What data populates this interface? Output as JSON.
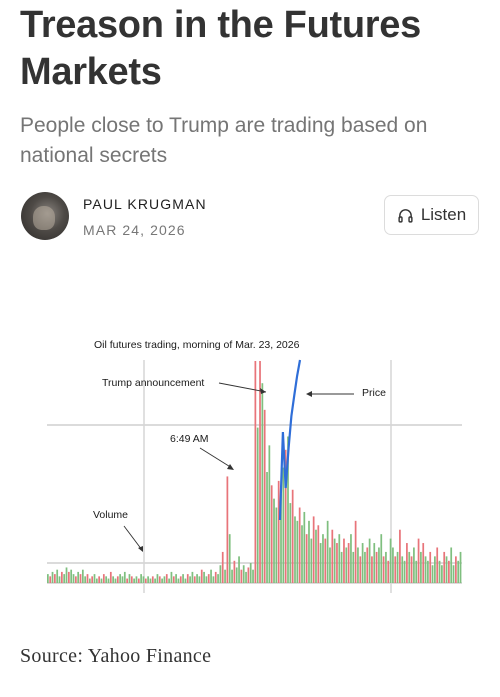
{
  "article": {
    "title": "Treason in the Futures Markets",
    "subtitle": "People close to Trump are trading based on national secrets",
    "author": "PAUL KRUGMAN",
    "date": "MAR 24, 2026",
    "listen_label": "Listen",
    "source": "Source: Yahoo Finance"
  },
  "icons": {
    "listen": "headphones-icon",
    "avatar": "author-photo"
  },
  "chart_data": {
    "type": "bar",
    "title": "Oil futures trading, morning of Mar. 23, 2026",
    "annotations": [
      "Trump announcement",
      "Price",
      "6:49 AM",
      "Volume"
    ],
    "colors": {
      "up": "#7fbf7f",
      "down": "#e8747a",
      "price": "#2f6ed8"
    },
    "volume": [
      {
        "v": 4,
        "c": "g"
      },
      {
        "v": 3,
        "c": "r"
      },
      {
        "v": 5,
        "c": "g"
      },
      {
        "v": 4,
        "c": "r"
      },
      {
        "v": 6,
        "c": "g"
      },
      {
        "v": 3,
        "c": "g"
      },
      {
        "v": 5,
        "c": "r"
      },
      {
        "v": 4,
        "c": "g"
      },
      {
        "v": 7,
        "c": "g"
      },
      {
        "v": 5,
        "c": "r"
      },
      {
        "v": 6,
        "c": "g"
      },
      {
        "v": 4,
        "c": "g"
      },
      {
        "v": 3,
        "c": "r"
      },
      {
        "v": 5,
        "c": "g"
      },
      {
        "v": 4,
        "c": "r"
      },
      {
        "v": 6,
        "c": "g"
      },
      {
        "v": 3,
        "c": "g"
      },
      {
        "v": 4,
        "c": "r"
      },
      {
        "v": 2,
        "c": "g"
      },
      {
        "v": 3,
        "c": "r"
      },
      {
        "v": 4,
        "c": "g"
      },
      {
        "v": 2,
        "c": "g"
      },
      {
        "v": 3,
        "c": "r"
      },
      {
        "v": 2,
        "c": "g"
      },
      {
        "v": 4,
        "c": "r"
      },
      {
        "v": 3,
        "c": "g"
      },
      {
        "v": 2,
        "c": "g"
      },
      {
        "v": 5,
        "c": "r"
      },
      {
        "v": 3,
        "c": "g"
      },
      {
        "v": 2,
        "c": "g"
      },
      {
        "v": 3,
        "c": "r"
      },
      {
        "v": 4,
        "c": "g"
      },
      {
        "v": 3,
        "c": "g"
      },
      {
        "v": 5,
        "c": "g"
      },
      {
        "v": 2,
        "c": "r"
      },
      {
        "v": 4,
        "c": "g"
      },
      {
        "v": 3,
        "c": "r"
      },
      {
        "v": 2,
        "c": "g"
      },
      {
        "v": 3,
        "c": "g"
      },
      {
        "v": 2,
        "c": "r"
      },
      {
        "v": 4,
        "c": "g"
      },
      {
        "v": 3,
        "c": "g"
      },
      {
        "v": 2,
        "c": "r"
      },
      {
        "v": 3,
        "c": "g"
      },
      {
        "v": 2,
        "c": "g"
      },
      {
        "v": 3,
        "c": "r"
      },
      {
        "v": 2,
        "c": "g"
      },
      {
        "v": 4,
        "c": "g"
      },
      {
        "v": 3,
        "c": "r"
      },
      {
        "v": 2,
        "c": "g"
      },
      {
        "v": 3,
        "c": "g"
      },
      {
        "v": 4,
        "c": "r"
      },
      {
        "v": 2,
        "c": "g"
      },
      {
        "v": 5,
        "c": "g"
      },
      {
        "v": 3,
        "c": "r"
      },
      {
        "v": 4,
        "c": "g"
      },
      {
        "v": 2,
        "c": "g"
      },
      {
        "v": 3,
        "c": "r"
      },
      {
        "v": 4,
        "c": "g"
      },
      {
        "v": 2,
        "c": "g"
      },
      {
        "v": 4,
        "c": "r"
      },
      {
        "v": 3,
        "c": "g"
      },
      {
        "v": 5,
        "c": "g"
      },
      {
        "v": 3,
        "c": "r"
      },
      {
        "v": 4,
        "c": "g"
      },
      {
        "v": 3,
        "c": "g"
      },
      {
        "v": 6,
        "c": "r"
      },
      {
        "v": 5,
        "c": "g"
      },
      {
        "v": 3,
        "c": "g"
      },
      {
        "v": 4,
        "c": "r"
      },
      {
        "v": 6,
        "c": "g"
      },
      {
        "v": 3,
        "c": "g"
      },
      {
        "v": 5,
        "c": "r"
      },
      {
        "v": 4,
        "c": "g"
      },
      {
        "v": 8,
        "c": "g"
      },
      {
        "v": 14,
        "c": "r"
      },
      {
        "v": 6,
        "c": "g"
      },
      {
        "v": 48,
        "c": "r"
      },
      {
        "v": 22,
        "c": "g"
      },
      {
        "v": 6,
        "c": "g"
      },
      {
        "v": 10,
        "c": "r"
      },
      {
        "v": 7,
        "c": "g"
      },
      {
        "v": 12,
        "c": "g"
      },
      {
        "v": 6,
        "c": "r"
      },
      {
        "v": 8,
        "c": "g"
      },
      {
        "v": 5,
        "c": "g"
      },
      {
        "v": 7,
        "c": "r"
      },
      {
        "v": 9,
        "c": "g"
      },
      {
        "v": 6,
        "c": "g"
      },
      {
        "v": 100,
        "c": "r"
      },
      {
        "v": 70,
        "c": "g"
      },
      {
        "v": 100,
        "c": "r"
      },
      {
        "v": 90,
        "c": "g"
      },
      {
        "v": 78,
        "c": "r"
      },
      {
        "v": 50,
        "c": "g"
      },
      {
        "v": 62,
        "c": "g"
      },
      {
        "v": 44,
        "c": "r"
      },
      {
        "v": 38,
        "c": "g"
      },
      {
        "v": 34,
        "c": "g"
      },
      {
        "v": 46,
        "c": "r"
      },
      {
        "v": 40,
        "c": "g"
      },
      {
        "v": 52,
        "c": "g"
      },
      {
        "v": 60,
        "c": "r"
      },
      {
        "v": 66,
        "c": "g"
      },
      {
        "v": 36,
        "c": "g"
      },
      {
        "v": 42,
        "c": "r"
      },
      {
        "v": 30,
        "c": "g"
      },
      {
        "v": 28,
        "c": "g"
      },
      {
        "v": 34,
        "c": "r"
      },
      {
        "v": 26,
        "c": "g"
      },
      {
        "v": 32,
        "c": "g"
      },
      {
        "v": 22,
        "c": "r"
      },
      {
        "v": 28,
        "c": "g"
      },
      {
        "v": 20,
        "c": "g"
      },
      {
        "v": 30,
        "c": "r"
      },
      {
        "v": 24,
        "c": "g"
      },
      {
        "v": 26,
        "c": "r"
      },
      {
        "v": 18,
        "c": "g"
      },
      {
        "v": 22,
        "c": "g"
      },
      {
        "v": 20,
        "c": "r"
      },
      {
        "v": 28,
        "c": "g"
      },
      {
        "v": 16,
        "c": "g"
      },
      {
        "v": 24,
        "c": "r"
      },
      {
        "v": 20,
        "c": "g"
      },
      {
        "v": 18,
        "c": "r"
      },
      {
        "v": 22,
        "c": "g"
      },
      {
        "v": 14,
        "c": "g"
      },
      {
        "v": 20,
        "c": "r"
      },
      {
        "v": 16,
        "c": "g"
      },
      {
        "v": 18,
        "c": "r"
      },
      {
        "v": 22,
        "c": "g"
      },
      {
        "v": 14,
        "c": "g"
      },
      {
        "v": 28,
        "c": "r"
      },
      {
        "v": 16,
        "c": "g"
      },
      {
        "v": 12,
        "c": "r"
      },
      {
        "v": 18,
        "c": "g"
      },
      {
        "v": 14,
        "c": "g"
      },
      {
        "v": 16,
        "c": "r"
      },
      {
        "v": 20,
        "c": "g"
      },
      {
        "v": 12,
        "c": "r"
      },
      {
        "v": 18,
        "c": "g"
      },
      {
        "v": 14,
        "c": "r"
      },
      {
        "v": 16,
        "c": "g"
      },
      {
        "v": 22,
        "c": "g"
      },
      {
        "v": 12,
        "c": "r"
      },
      {
        "v": 14,
        "c": "g"
      },
      {
        "v": 10,
        "c": "r"
      },
      {
        "v": 20,
        "c": "g"
      },
      {
        "v": 16,
        "c": "g"
      },
      {
        "v": 12,
        "c": "r"
      },
      {
        "v": 14,
        "c": "g"
      },
      {
        "v": 24,
        "c": "r"
      },
      {
        "v": 12,
        "c": "g"
      },
      {
        "v": 10,
        "c": "g"
      },
      {
        "v": 18,
        "c": "r"
      },
      {
        "v": 14,
        "c": "g"
      },
      {
        "v": 12,
        "c": "r"
      },
      {
        "v": 16,
        "c": "g"
      },
      {
        "v": 10,
        "c": "g"
      },
      {
        "v": 20,
        "c": "r"
      },
      {
        "v": 14,
        "c": "g"
      },
      {
        "v": 18,
        "c": "r"
      },
      {
        "v": 12,
        "c": "g"
      },
      {
        "v": 10,
        "c": "g"
      },
      {
        "v": 14,
        "c": "r"
      },
      {
        "v": 8,
        "c": "g"
      },
      {
        "v": 12,
        "c": "g"
      },
      {
        "v": 16,
        "c": "r"
      },
      {
        "v": 10,
        "c": "g"
      },
      {
        "v": 8,
        "c": "g"
      },
      {
        "v": 14,
        "c": "r"
      },
      {
        "v": 12,
        "c": "g"
      },
      {
        "v": 10,
        "c": "r"
      },
      {
        "v": 16,
        "c": "g"
      },
      {
        "v": 8,
        "c": "g"
      },
      {
        "v": 12,
        "c": "r"
      },
      {
        "v": 10,
        "c": "g"
      },
      {
        "v": 14,
        "c": "g"
      }
    ],
    "price": [
      0,
      55,
      20,
      45,
      65,
      78,
      90,
      100
    ],
    "grid": true
  }
}
